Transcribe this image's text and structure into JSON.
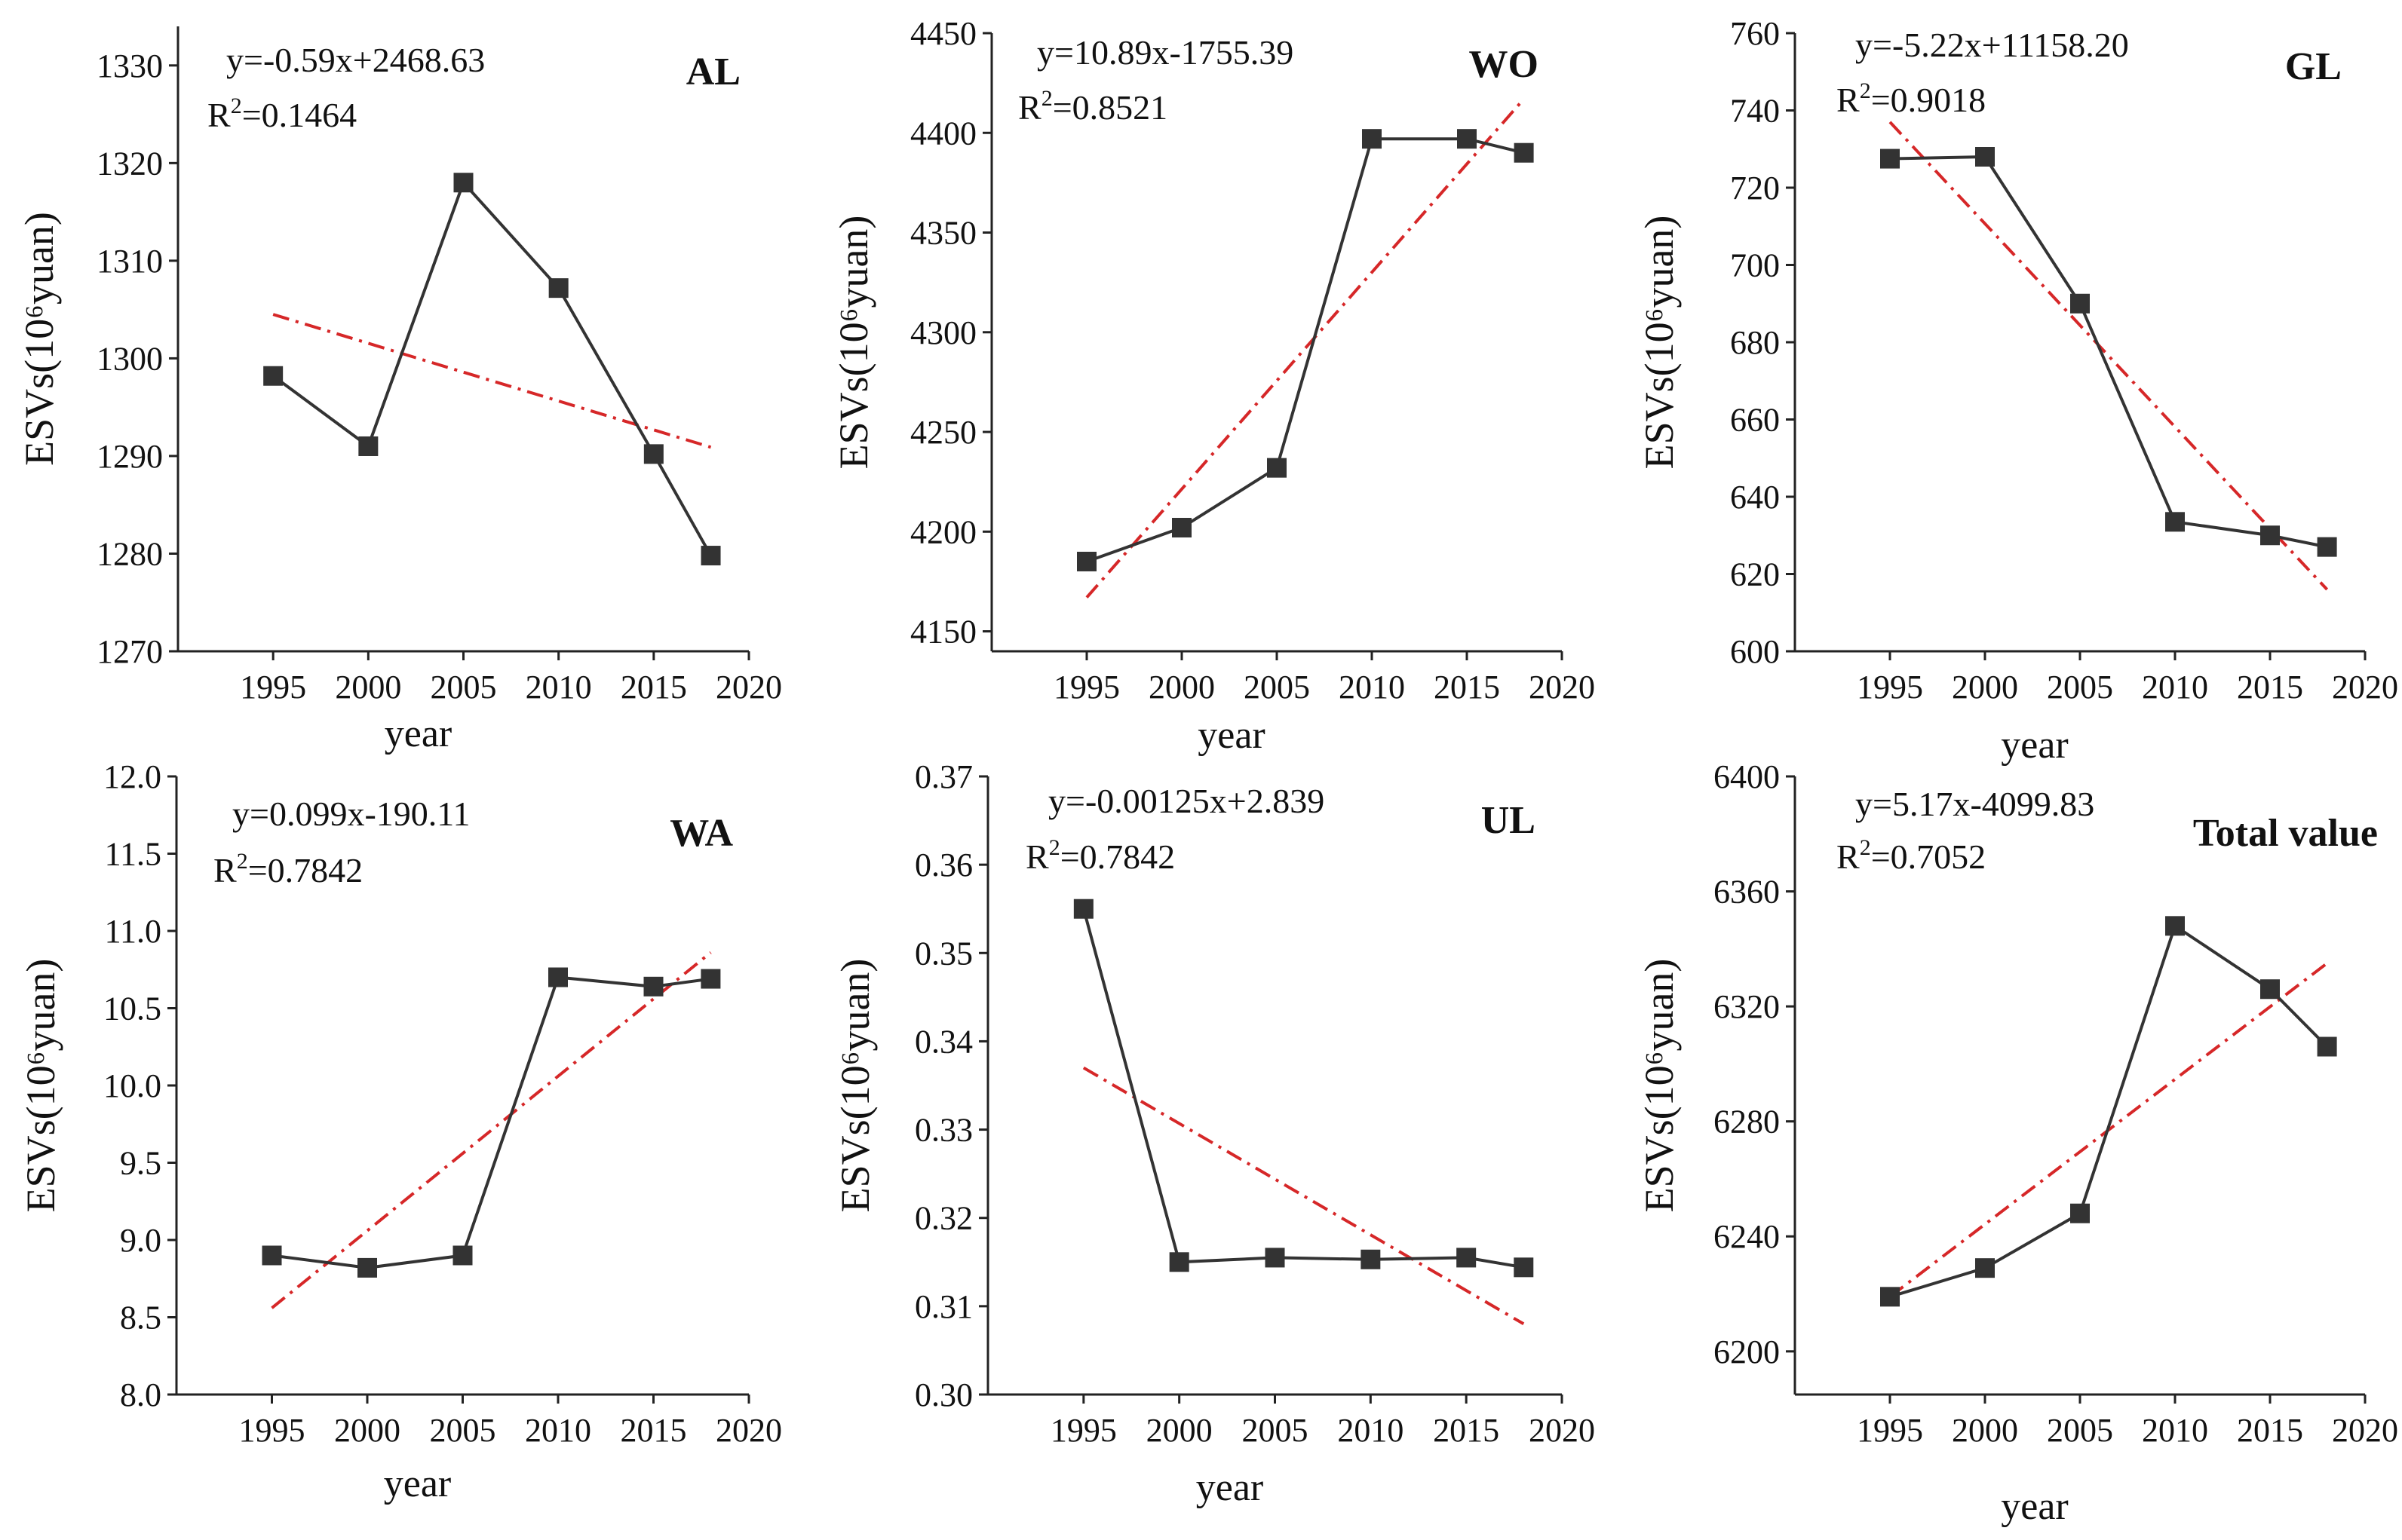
{
  "colors": {
    "data_line": "#333333",
    "marker": "#333333",
    "fit_line": "#d62728",
    "axis": "#222222"
  },
  "chart_data": [
    {
      "type": "line",
      "title": "AL",
      "xlabel": "year",
      "ylabel": "ESVs(10⁶yuan)",
      "x": [
        1995,
        2000,
        2005,
        2010,
        2015,
        2018
      ],
      "values": [
        1298.2,
        1291.0,
        1318.0,
        1307.2,
        1290.2,
        1279.8
      ],
      "xlim": [
        1990,
        2020
      ],
      "ylim": [
        1270,
        1334
      ],
      "xticks": [
        1995,
        2000,
        2005,
        2010,
        2015,
        2020
      ],
      "yticks": [
        1270,
        1280,
        1290,
        1300,
        1310,
        1320,
        1330
      ],
      "ytick_labels": [
        "1270",
        "1280",
        "1290",
        "1300",
        "1310",
        "1320",
        "1330"
      ],
      "fit": {
        "x": [
          1995,
          2018
        ],
        "y": [
          1304.5,
          1290.9
        ]
      },
      "equation": "y=-0.59x+2468.63",
      "r2_value": "=0.1464"
    },
    {
      "type": "line",
      "title": "WO",
      "xlabel": "year",
      "ylabel": "ESVs(10⁶yuan)",
      "x": [
        1995,
        2000,
        2005,
        2010,
        2015,
        2018
      ],
      "values": [
        4185,
        4202,
        4232,
        4397,
        4397,
        4390
      ],
      "xlim": [
        1990,
        2020
      ],
      "ylim": [
        4140,
        4450
      ],
      "xticks": [
        1995,
        2000,
        2005,
        2010,
        2015,
        2020
      ],
      "yticks": [
        4150,
        4200,
        4250,
        4300,
        4350,
        4400,
        4450
      ],
      "ytick_labels": [
        "4150",
        "4200",
        "4250",
        "4300",
        "4350",
        "4400",
        "4450"
      ],
      "fit": {
        "x": [
          1995,
          2018
        ],
        "y": [
          4167,
          4417
        ]
      },
      "equation": "y=10.89x-1755.39",
      "r2_value": "=0.8521"
    },
    {
      "type": "line",
      "title": "GL",
      "xlabel": "year",
      "ylabel": "ESVs(10⁶yuan)",
      "x": [
        1995,
        2000,
        2005,
        2010,
        2015,
        2018
      ],
      "values": [
        727.5,
        728.0,
        690.0,
        633.5,
        630.0,
        627.0
      ],
      "xlim": [
        1990,
        2020
      ],
      "ylim": [
        600,
        760
      ],
      "xticks": [
        1995,
        2000,
        2005,
        2010,
        2015,
        2020
      ],
      "yticks": [
        600,
        620,
        640,
        660,
        680,
        700,
        720,
        740,
        760
      ],
      "ytick_labels": [
        "600",
        "620",
        "640",
        "660",
        "680",
        "700",
        "720",
        "740",
        "760"
      ],
      "fit": {
        "x": [
          1995,
          2018
        ],
        "y": [
          737,
          616
        ]
      },
      "equation": "y=-5.22x+11158.20",
      "r2_value": "=0.9018"
    },
    {
      "type": "line",
      "title": "WA",
      "xlabel": "year",
      "ylabel": "ESVs(10⁶yuan)",
      "x": [
        1995,
        2000,
        2005,
        2010,
        2015,
        2018
      ],
      "values": [
        8.9,
        8.82,
        8.9,
        10.7,
        10.64,
        10.69
      ],
      "xlim": [
        1990,
        2020
      ],
      "ylim": [
        8.0,
        12.0
      ],
      "xticks": [
        1995,
        2000,
        2005,
        2010,
        2015,
        2020
      ],
      "yticks": [
        8.0,
        8.5,
        9.0,
        9.5,
        10.0,
        10.5,
        11.0,
        11.5,
        12.0
      ],
      "ytick_labels": [
        "8.0",
        "8.5",
        "9.0",
        "9.5",
        "10.0",
        "10.5",
        "11.0",
        "11.5",
        "12.0"
      ],
      "fit": {
        "x": [
          1995,
          2018
        ],
        "y": [
          8.56,
          10.86
        ]
      },
      "equation": "y=0.099x-190.11",
      "r2_value": "=0.7842"
    },
    {
      "type": "line",
      "title": "UL",
      "xlabel": "year",
      "ylabel": "ESVs(10⁶yuan)",
      "x": [
        1995,
        2000,
        2005,
        2010,
        2015,
        2018
      ],
      "values": [
        0.355,
        0.315,
        0.3155,
        0.3153,
        0.3155,
        0.3144
      ],
      "xlim": [
        1990,
        2020
      ],
      "ylim": [
        0.3,
        0.37
      ],
      "xticks": [
        1995,
        2000,
        2005,
        2010,
        2015,
        2020
      ],
      "yticks": [
        0.3,
        0.31,
        0.32,
        0.33,
        0.34,
        0.35,
        0.36,
        0.37
      ],
      "ytick_labels": [
        "0.30",
        "0.31",
        "0.32",
        "0.33",
        "0.34",
        "0.35",
        "0.36",
        "0.37"
      ],
      "fit": {
        "x": [
          1995,
          2018
        ],
        "y": [
          0.337,
          0.308
        ]
      },
      "equation": "y=-0.00125x+2.839",
      "r2_value": "=0.7842"
    },
    {
      "type": "line",
      "title": "Total value",
      "xlabel": "year",
      "ylabel": "ESVs(10⁶yuan)",
      "x": [
        1995,
        2000,
        2005,
        2010,
        2015,
        2018
      ],
      "values": [
        6219,
        6229,
        6248,
        6348,
        6326,
        6306
      ],
      "xlim": [
        1990,
        2020
      ],
      "ylim": [
        6185,
        6400
      ],
      "xticks": [
        1995,
        2000,
        2005,
        2010,
        2015,
        2020
      ],
      "yticks": [
        6200,
        6240,
        6280,
        6320,
        6360,
        6400
      ],
      "ytick_labels": [
        "6200",
        "6240",
        "6280",
        "6320",
        "6360",
        "6400"
      ],
      "fit": {
        "x": [
          1995,
          2018
        ],
        "y": [
          6219,
          6335
        ]
      },
      "equation": "y=5.17x-4099.83",
      "r2_value": "=0.7052"
    }
  ]
}
